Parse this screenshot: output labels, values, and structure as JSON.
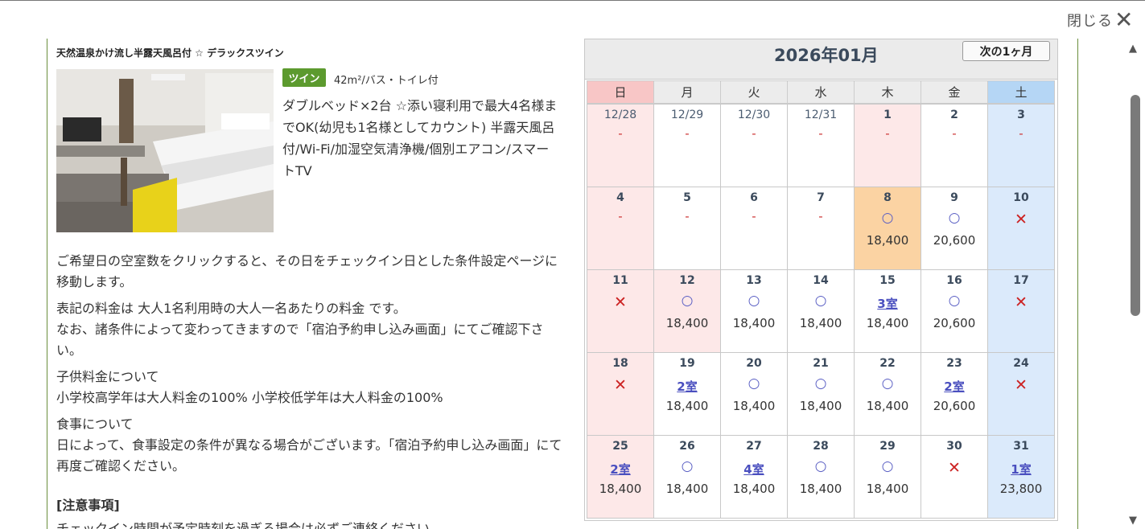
{
  "close": {
    "label": "閉じる",
    "icon": "close-icon"
  },
  "room": {
    "title": "天然温泉かけ流し半露天風呂付 ☆ デラックスツイン",
    "badge": "ツイン",
    "size": "42m²/バス・トイレ付",
    "description": "ダブルベッド×2台 ☆添い寝利用で最大4名様までOK(幼児も1名様としてカウント) 半露天風呂付/Wi-Fi/加湿空気清浄機/個別エアコン/スマートTV"
  },
  "info": {
    "click_hint": "ご希望日の空室数をクリックすると、その日をチェックイン日とした条件設定ページに移動します。",
    "price_note_1": "表記の料金は 大人1名利用時の大人一名あたりの料金 です。",
    "price_note_2": "なお、諸条件によって変わってきますので「宿泊予約申し込み画面」にてご確認下さい。",
    "child_title": "子供料金について",
    "child_text": "小学校高学年は大人料金の100% 小学校低学年は大人料金の100%",
    "meal_title": "食事について",
    "meal_text": "日によって、食事設定の条件が異なる場合がございます。「宿泊予約申し込み画面」にて再度ご確認ください。",
    "notes_title": "[注意事項]",
    "notes_cut": "チェックイン時間が予定時刻を過ぎる場合は必ずご連絡ください"
  },
  "calendar": {
    "month": "2026年01月",
    "next_button": "次の1ヶ月",
    "weekdays": [
      "日",
      "月",
      "火",
      "水",
      "木",
      "金",
      "土"
    ],
    "colors": {
      "sunday_head": "#f8c6c6",
      "saturday_head": "#b5d6f5",
      "selected": "#fbd3a3",
      "cross": "#cc2222",
      "link": "#4a4fbf"
    },
    "weeks": [
      [
        {
          "day": "12/28",
          "avail": "-",
          "type": "dash",
          "price": "",
          "style": "sun",
          "past": true
        },
        {
          "day": "12/29",
          "avail": "-",
          "type": "dash",
          "price": "",
          "style": "",
          "past": true
        },
        {
          "day": "12/30",
          "avail": "-",
          "type": "dash",
          "price": "",
          "style": "",
          "past": true
        },
        {
          "day": "12/31",
          "avail": "-",
          "type": "dash",
          "price": "",
          "style": "",
          "past": true
        },
        {
          "day": "1",
          "avail": "-",
          "type": "dash",
          "price": "",
          "style": "holiday",
          "past": false
        },
        {
          "day": "2",
          "avail": "-",
          "type": "dash",
          "price": "",
          "style": "",
          "past": false
        },
        {
          "day": "3",
          "avail": "-",
          "type": "dash",
          "price": "",
          "style": "sat",
          "past": false
        }
      ],
      [
        {
          "day": "4",
          "avail": "-",
          "type": "dash",
          "price": "",
          "style": "sun",
          "past": false
        },
        {
          "day": "5",
          "avail": "-",
          "type": "dash",
          "price": "",
          "style": "",
          "past": false
        },
        {
          "day": "6",
          "avail": "-",
          "type": "dash",
          "price": "",
          "style": "",
          "past": false
        },
        {
          "day": "7",
          "avail": "-",
          "type": "dash",
          "price": "",
          "style": "",
          "past": false
        },
        {
          "day": "8",
          "avail": "○",
          "type": "circle",
          "price": "18,400",
          "style": "selected",
          "past": false
        },
        {
          "day": "9",
          "avail": "○",
          "type": "circle",
          "price": "20,600",
          "style": "",
          "past": false
        },
        {
          "day": "10",
          "avail": "✕",
          "type": "cross",
          "price": "",
          "style": "sat",
          "past": false
        }
      ],
      [
        {
          "day": "11",
          "avail": "✕",
          "type": "cross",
          "price": "",
          "style": "sun",
          "past": false
        },
        {
          "day": "12",
          "avail": "○",
          "type": "circle",
          "price": "18,400",
          "style": "holiday",
          "past": false
        },
        {
          "day": "13",
          "avail": "○",
          "type": "circle",
          "price": "18,400",
          "style": "",
          "past": false
        },
        {
          "day": "14",
          "avail": "○",
          "type": "circle",
          "price": "18,400",
          "style": "",
          "past": false
        },
        {
          "day": "15",
          "avail": "3室",
          "type": "rooms",
          "price": "18,400",
          "style": "",
          "past": false
        },
        {
          "day": "16",
          "avail": "○",
          "type": "circle",
          "price": "20,600",
          "style": "",
          "past": false
        },
        {
          "day": "17",
          "avail": "✕",
          "type": "cross",
          "price": "",
          "style": "sat",
          "past": false
        }
      ],
      [
        {
          "day": "18",
          "avail": "✕",
          "type": "cross",
          "price": "",
          "style": "sun",
          "past": false
        },
        {
          "day": "19",
          "avail": "2室",
          "type": "rooms",
          "price": "18,400",
          "style": "",
          "past": false
        },
        {
          "day": "20",
          "avail": "○",
          "type": "circle",
          "price": "18,400",
          "style": "",
          "past": false
        },
        {
          "day": "21",
          "avail": "○",
          "type": "circle",
          "price": "18,400",
          "style": "",
          "past": false
        },
        {
          "day": "22",
          "avail": "○",
          "type": "circle",
          "price": "18,400",
          "style": "",
          "past": false
        },
        {
          "day": "23",
          "avail": "2室",
          "type": "rooms",
          "price": "20,600",
          "style": "",
          "past": false
        },
        {
          "day": "24",
          "avail": "✕",
          "type": "cross",
          "price": "",
          "style": "sat",
          "past": false
        }
      ],
      [
        {
          "day": "25",
          "avail": "2室",
          "type": "rooms",
          "price": "18,400",
          "style": "sun",
          "past": false
        },
        {
          "day": "26",
          "avail": "○",
          "type": "circle",
          "price": "18,400",
          "style": "",
          "past": false
        },
        {
          "day": "27",
          "avail": "4室",
          "type": "rooms",
          "price": "18,400",
          "style": "",
          "past": false
        },
        {
          "day": "28",
          "avail": "○",
          "type": "circle",
          "price": "18,400",
          "style": "",
          "past": false
        },
        {
          "day": "29",
          "avail": "○",
          "type": "circle",
          "price": "18,400",
          "style": "",
          "past": false
        },
        {
          "day": "30",
          "avail": "✕",
          "type": "cross",
          "price": "",
          "style": "",
          "past": false
        },
        {
          "day": "31",
          "avail": "1室",
          "type": "rooms",
          "price": "23,800",
          "style": "sat",
          "past": false
        }
      ]
    ]
  },
  "scrollbar": {
    "up_icon": "scroll-up-arrow-icon",
    "down_icon": "scroll-down-arrow-icon"
  }
}
